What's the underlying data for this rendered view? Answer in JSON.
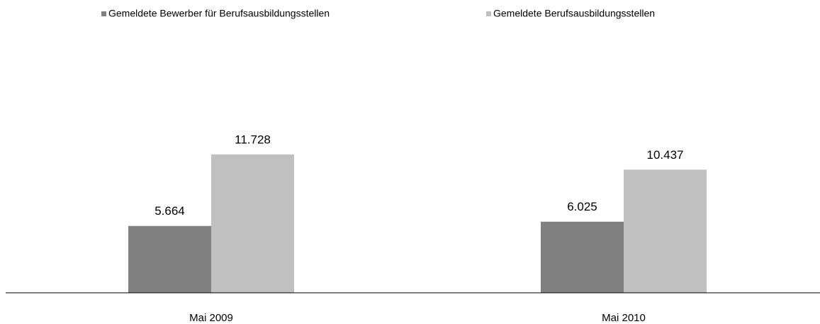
{
  "chart_data": {
    "type": "bar",
    "categories": [
      "Mai 2009",
      "Mai 2010"
    ],
    "series": [
      {
        "name": "Gemeldete Bewerber für Berufsausbildungsstellen",
        "color": "#808080",
        "values": [
          5664,
          6025
        ],
        "value_labels": [
          "5.664",
          "6.025"
        ]
      },
      {
        "name": "Gemeldete Berufsausbildungsstellen",
        "color": "#c0c0c0",
        "values": [
          11728,
          10437
        ],
        "value_labels": [
          "11.728",
          "10.437"
        ]
      }
    ],
    "ylim": [
      0,
      14000
    ]
  }
}
